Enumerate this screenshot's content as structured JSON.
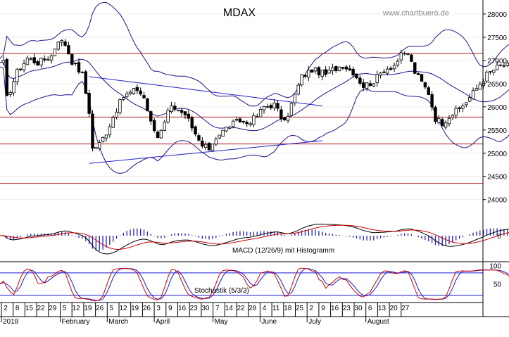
{
  "header": {
    "title": "MDAX",
    "source": "www.chartbuero.de"
  },
  "colors": {
    "price_candle": "#000000",
    "bollinger_band": "#2a0f8c",
    "support_line": "#b01818",
    "trend_line": "#1f1fc8",
    "macd_line": "#000000",
    "signal_line": "#cc0000",
    "histogram": "#2020c0",
    "stoch_k": "#cc0000",
    "stoch_d": "#1a1acc",
    "stoch_level": "#1a1acc",
    "grid": "#9a9a9a"
  },
  "chart_data": [
    {
      "type": "candlestick",
      "title": "MDAX",
      "y_axis_side": "right",
      "ylim": [
        23450,
        28150
      ],
      "y_ticks": [
        24000,
        24500,
        25000,
        25500,
        26000,
        26500,
        27000,
        27500,
        28000
      ],
      "y_tick_labels": [
        "24000",
        "24500",
        "25000",
        "25500",
        "26000",
        "26500",
        "27000",
        "27500",
        "28000"
      ],
      "horizontal_levels": [
        27150,
        25780,
        25200,
        24350
      ],
      "trend_lines": [
        {
          "name": "upper",
          "start": [
            "2018-02-05",
            26650
          ],
          "end": [
            "2018-05-10",
            26020
          ]
        },
        {
          "name": "lower",
          "start": [
            "2018-02-05",
            24780
          ],
          "end": [
            "2018-05-10",
            25270
          ]
        }
      ],
      "overlays": [
        "Bollinger upper",
        "Bollinger middle",
        "Bollinger lower"
      ],
      "closes": [
        [
          "2018-01-02",
          26180
        ],
        [
          "2018-01-05",
          26750
        ],
        [
          "2018-01-10",
          27050
        ],
        [
          "2018-01-15",
          26950
        ],
        [
          "2018-01-19",
          27100
        ],
        [
          "2018-01-23",
          27450
        ],
        [
          "2018-01-25",
          27350
        ],
        [
          "2018-01-29",
          26980
        ],
        [
          "2018-02-01",
          26700
        ],
        [
          "2018-02-05",
          25900
        ],
        [
          "2018-02-06",
          25100
        ],
        [
          "2018-02-08",
          25200
        ],
        [
          "2018-02-12",
          25450
        ],
        [
          "2018-02-15",
          25950
        ],
        [
          "2018-02-19",
          26220
        ],
        [
          "2018-02-23",
          26380
        ],
        [
          "2018-02-27",
          26200
        ],
        [
          "2018-03-01",
          25650
        ],
        [
          "2018-03-05",
          25350
        ],
        [
          "2018-03-09",
          26080
        ],
        [
          "2018-03-13",
          25900
        ],
        [
          "2018-03-16",
          25700
        ],
        [
          "2018-03-19",
          25500
        ],
        [
          "2018-03-22",
          25150
        ],
        [
          "2018-03-26",
          25100
        ],
        [
          "2018-03-28",
          25350
        ],
        [
          "2018-04-03",
          25600
        ],
        [
          "2018-04-06",
          25700
        ],
        [
          "2018-04-10",
          25650
        ],
        [
          "2018-04-13",
          25800
        ],
        [
          "2018-04-17",
          26000
        ],
        [
          "2018-04-20",
          26050
        ],
        [
          "2018-04-25",
          25650
        ],
        [
          "2018-04-27",
          26050
        ],
        [
          "2018-05-02",
          26650
        ],
        [
          "2018-05-07",
          26800
        ],
        [
          "2018-05-11",
          26700
        ],
        [
          "2018-05-15",
          26800
        ],
        [
          "2018-05-18",
          26900
        ],
        [
          "2018-05-23",
          26750
        ],
        [
          "2018-05-28",
          26450
        ],
        [
          "2018-05-31",
          26550
        ],
        [
          "2018-06-05",
          26800
        ],
        [
          "2018-06-08",
          26900
        ],
        [
          "2018-06-12",
          27100
        ],
        [
          "2018-06-14",
          27150
        ],
        [
          "2018-06-18",
          26750
        ],
        [
          "2018-06-22",
          26300
        ],
        [
          "2018-06-26",
          25750
        ],
        [
          "2018-06-28",
          25650
        ],
        [
          "2018-07-02",
          25800
        ],
        [
          "2018-07-05",
          25950
        ],
        [
          "2018-07-10",
          26200
        ],
        [
          "2018-07-13",
          26500
        ],
        [
          "2018-07-17",
          26700
        ],
        [
          "2018-07-20",
          26850
        ],
        [
          "2018-07-24",
          26900
        ],
        [
          "2018-07-27",
          26850
        ],
        [
          "2018-07-31",
          26800
        ],
        [
          "2018-08-03",
          26950
        ]
      ]
    },
    {
      "type": "line",
      "title": "MACD (12/26/9) mit Histogramm",
      "y_ticks": [
        0
      ],
      "y_tick_labels": [
        "0"
      ],
      "series": [
        {
          "name": "MACD",
          "role": "macd"
        },
        {
          "name": "Signal",
          "role": "signal"
        },
        {
          "name": "Histogramm",
          "role": "histogram"
        }
      ]
    },
    {
      "type": "line",
      "title": "Stochastik (5/3/3)",
      "ylim": [
        0,
        110
      ],
      "y_ticks": [
        50,
        100
      ],
      "y_tick_labels": [
        "50",
        "100"
      ],
      "levels": [
        80,
        20
      ],
      "series": [
        {
          "name": "%K",
          "role": "stoch_k"
        },
        {
          "name": "%D",
          "role": "stoch_d"
        }
      ]
    }
  ],
  "x_axis": {
    "day_labels": [
      "2",
      "8",
      "15",
      "22",
      "29",
      "5",
      "12",
      "19",
      "26",
      "5",
      "12",
      "19",
      "26",
      "3",
      "9",
      "16",
      "23",
      "30",
      "7",
      "14",
      "22",
      "28",
      "4",
      "11",
      "18",
      "25",
      "2",
      "9",
      "16",
      "23",
      "30",
      "6",
      "13",
      "20",
      "27"
    ],
    "month_labels": [
      "2018",
      "February",
      "March",
      "April",
      "May",
      "June",
      "July",
      "August"
    ]
  }
}
